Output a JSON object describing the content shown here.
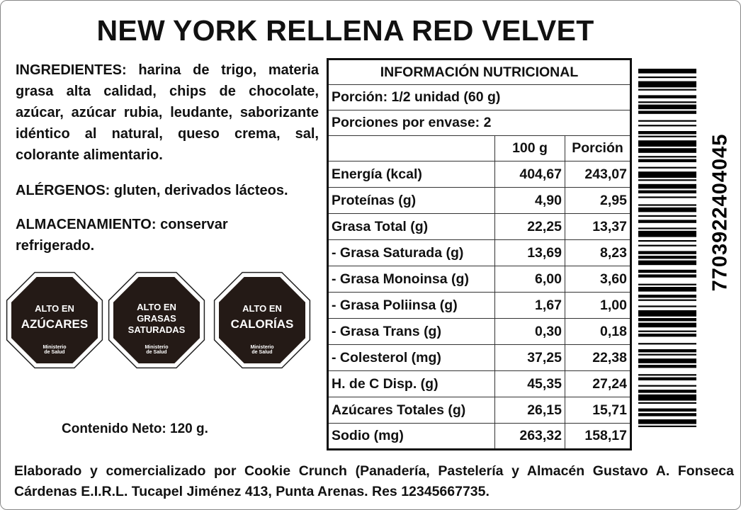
{
  "title": "NEW YORK RELLENA RED VELVET",
  "ingredients": {
    "label": "INGREDIENTES:",
    "text": "harina de trigo, materia grasa alta calidad, chips de chocolate, azúcar, azúcar rubia, leudante, saborizante idéntico al natural, queso crema, sal, colorante alimentario."
  },
  "allergens": {
    "label": "ALÉRGENOS:",
    "text": "gluten, derivados lácteos."
  },
  "storage": {
    "label": "ALMACENAMIENTO:",
    "text": "conservar refrigerado."
  },
  "seals": [
    {
      "lines": [
        "ALTO EN",
        "AZÚCARES"
      ],
      "ministry": [
        "Ministerio",
        "de Salud"
      ]
    },
    {
      "lines": [
        "ALTO EN",
        "GRASAS",
        "SATURADAS"
      ],
      "ministry": [
        "Ministerio",
        "de Salud"
      ]
    },
    {
      "lines": [
        "ALTO EN",
        "CALORÍAS"
      ],
      "ministry": [
        "Ministerio",
        "de Salud"
      ]
    }
  ],
  "net_content": "Contenido Neto: 120 g.",
  "nutrition": {
    "title": "INFORMACIÓN NUTRICIONAL",
    "serving": "Porción: 1/2 unidad (60 g)",
    "servings_per_package": "Porciones por envase: 2",
    "columns": [
      "100 g",
      "Porción"
    ],
    "rows": [
      [
        "Energía (kcal)",
        "404,67",
        "243,07"
      ],
      [
        "Proteínas (g)",
        "4,90",
        "2,95"
      ],
      [
        "Grasa Total (g)",
        "22,25",
        "13,37"
      ],
      [
        "- Grasa Saturada (g)",
        "13,69",
        "8,23"
      ],
      [
        "- Grasa Monoinsa (g)",
        "6,00",
        "3,60"
      ],
      [
        "- Grasa Poliinsa (g)",
        "1,67",
        "1,00"
      ],
      [
        "- Grasa Trans (g)",
        "0,30",
        "0,18"
      ],
      [
        "- Colesterol (mg)",
        "37,25",
        "22,38"
      ],
      [
        "H. de C Disp. (g)",
        "45,35",
        "27,24"
      ],
      [
        "Azúcares Totales (g)",
        "26,15",
        "15,71"
      ],
      [
        "Sodio (mg)",
        "263,32",
        "158,17"
      ]
    ]
  },
  "barcode": "7703922404045",
  "footer": "Elaborado y comercializado por Cookie Crunch (Panadería, Pastelería y Almacén Gustavo A. Fonseca Cárdenas E.I.R.L. Tucapel Jiménez 413, Punta Arenas. Res 12345667735."
}
